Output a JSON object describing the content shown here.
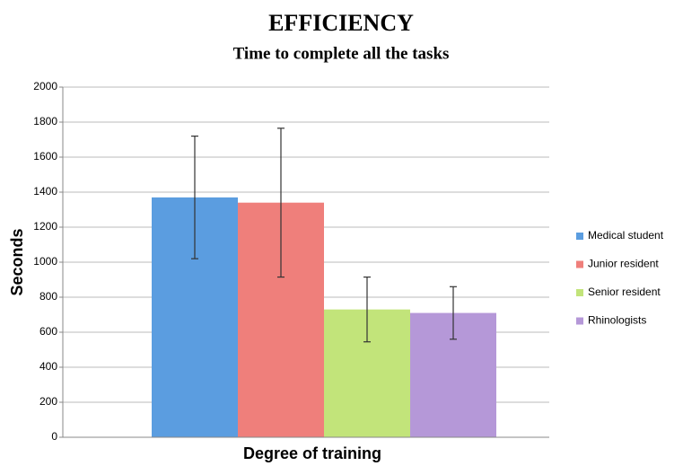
{
  "chart_data": {
    "type": "bar",
    "title": "EFFICIENCY",
    "subtitle": "Time to complete all the tasks",
    "x_label": "Degree of training",
    "y_label": "Seconds",
    "categories": [
      null
    ],
    "series": [
      {
        "name": "Medical student",
        "color": "#5b9de0",
        "values": [
          1370
        ],
        "errors": [
          350
        ]
      },
      {
        "name": "Junior resident",
        "color": "#ef7f7b",
        "values": [
          1340
        ],
        "errors": [
          425
        ]
      },
      {
        "name": "Senior resident",
        "color": "#c2e47a",
        "values": [
          730
        ],
        "errors": [
          185
        ]
      },
      {
        "name": "Rhinologists",
        "color": "#b598d8",
        "values": [
          710
        ],
        "errors": [
          150
        ]
      }
    ],
    "ylim": [
      0,
      2000
    ],
    "yticks": [
      0,
      200,
      400,
      600,
      800,
      1000,
      1200,
      1400,
      1600,
      1800,
      2000
    ],
    "grid": true,
    "legend": "right"
  }
}
